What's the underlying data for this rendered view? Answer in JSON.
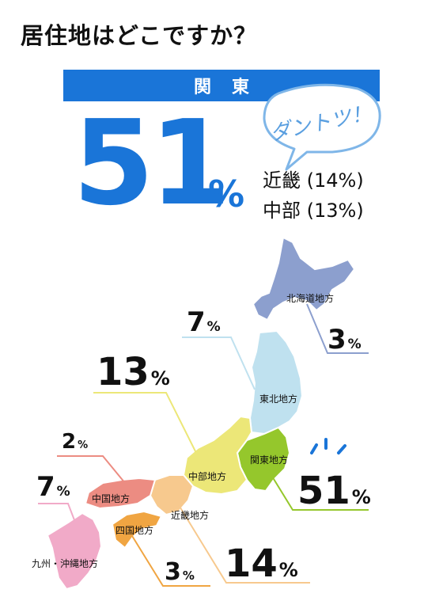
{
  "title": "居住地はどこですか？",
  "top_region": {
    "label": "関東",
    "value": "51",
    "unit": "%"
  },
  "callout": "ダントツ！",
  "runners_up": [
    {
      "text": "近畿 (14%)"
    },
    {
      "text": "中部 (13%)"
    }
  ],
  "colors": {
    "accent": "#1a75d8",
    "hokkaido": "#8c9fce",
    "tohoku": "#bfe1ef",
    "kanto": "#95c72c",
    "chubu": "#ece778",
    "kinki": "#f7c98e",
    "chugoku": "#ec8c82",
    "shikoku": "#f0a542",
    "kyushu": "#f1aac8"
  },
  "chart_data": {
    "type": "map",
    "title": "居住地はどこですか？",
    "unit": "%",
    "regions": [
      {
        "name": "北海道地方",
        "value": 3,
        "color": "#8c9fce"
      },
      {
        "name": "東北地方",
        "value": 7,
        "color": "#bfe1ef"
      },
      {
        "name": "関東地方",
        "value": 51,
        "color": "#95c72c"
      },
      {
        "name": "中部地方",
        "value": 13,
        "color": "#ece778"
      },
      {
        "name": "近畿地方",
        "value": 14,
        "color": "#f7c98e"
      },
      {
        "name": "中国地方",
        "value": 2,
        "color": "#ec8c82"
      },
      {
        "name": "四国地方",
        "value": 3,
        "color": "#f0a542"
      },
      {
        "name": "九州・沖縄地方",
        "value": 7,
        "color": "#f1aac8"
      }
    ]
  }
}
